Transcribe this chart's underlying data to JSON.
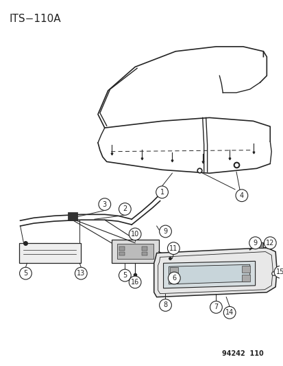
{
  "title": "ITS−110A",
  "footer": "94242  110",
  "bg_color": "#ffffff",
  "line_color": "#222222",
  "font_size_title": 11,
  "font_size_footer": 7
}
